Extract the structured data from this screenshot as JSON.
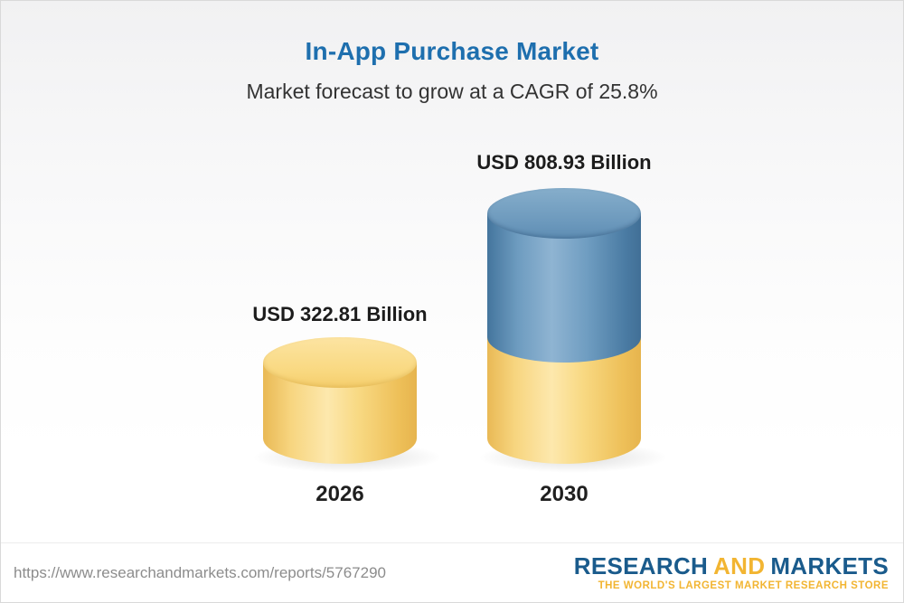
{
  "header": {
    "title": "In-App Purchase Market",
    "subtitle": "Market forecast to grow at a CAGR of 25.8%"
  },
  "chart_data": {
    "type": "bar",
    "title": "In-App Purchase Market",
    "subtitle": "Market forecast to grow at a CAGR of 25.8%",
    "cagr": "25.8%",
    "unit": "USD Billion",
    "categories": [
      "2026",
      "2030"
    ],
    "values": [
      322.81,
      808.93
    ],
    "bars": [
      {
        "year": "2026",
        "value": 322.81,
        "label": "USD 322.81 Billion",
        "segment_colors": [
          "#f6cf72"
        ]
      },
      {
        "year": "2030",
        "value": 808.93,
        "label": "USD 808.93 Billion",
        "segment_colors": [
          "#5b8db8",
          "#f6cf72"
        ]
      }
    ],
    "legend": "none",
    "grid": false
  },
  "footer": {
    "url": "https://www.researchandmarkets.com/reports/5767290",
    "logo": {
      "part1": "RESEARCH",
      "part2": "AND",
      "part3": "MARKETS",
      "tagline": "THE WORLD'S LARGEST MARKET RESEARCH STORE"
    }
  },
  "colors": {
    "title_blue": "#1e6fae",
    "logo_blue": "#1a5b8c",
    "accent_yellow": "#f2b532",
    "bar_yellow": "#f6cf72",
    "bar_blue": "#5b8db8"
  }
}
